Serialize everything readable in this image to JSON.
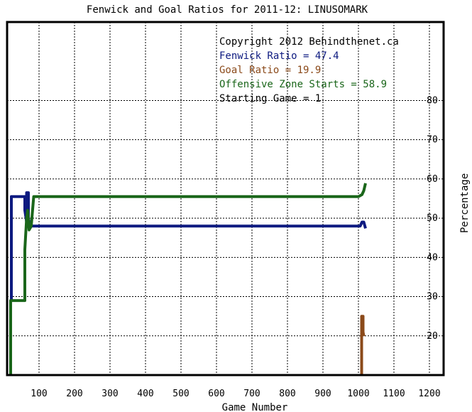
{
  "chart_data": {
    "type": "line",
    "title": "Fenwick and Goal Ratios for 2011-12: LINUSOMARK",
    "xlabel": "Game Number",
    "ylabel": "Percentage",
    "xlim": [
      10,
      1240
    ],
    "ylim": [
      10,
      100
    ],
    "x_ticks": [
      100,
      200,
      300,
      400,
      500,
      600,
      700,
      800,
      900,
      1000,
      1100,
      1200
    ],
    "y_ticks": [
      20,
      30,
      40,
      50,
      60,
      70,
      80
    ],
    "grid": true,
    "legend_position": "top-right",
    "legend": [
      {
        "text": "Copyright 2012 Behindthenet.ca",
        "color": "#000000"
      },
      {
        "text": "Fenwick Ratio = 47.4",
        "color": "#0d1a80"
      },
      {
        "text": "Goal Ratio = 19.9",
        "color": "#8b4a1a"
      },
      {
        "text": "Offensive Zone Starts = 58.9",
        "color": "#1a661a"
      },
      {
        "text": "Starting Game = 1",
        "color": "#000000"
      }
    ],
    "series": [
      {
        "name": "Fenwick Ratio",
        "color": "#0d1a80",
        "points": [
          [
            22,
            29
          ],
          [
            22,
            55.5
          ],
          [
            60,
            55.5
          ],
          [
            60,
            52
          ],
          [
            65,
            49
          ],
          [
            65,
            56.5
          ],
          [
            70,
            56.5
          ],
          [
            70,
            50
          ],
          [
            75,
            47.5
          ],
          [
            78,
            48
          ],
          [
            1005,
            48
          ],
          [
            1010,
            49
          ],
          [
            1015,
            49
          ],
          [
            1020,
            47.4
          ]
        ]
      },
      {
        "name": "Goal Ratio",
        "color": "#8b4a1a",
        "points": [
          [
            1009,
            10
          ],
          [
            1009,
            25
          ],
          [
            1013,
            25
          ],
          [
            1013,
            21
          ],
          [
            1015,
            20
          ],
          [
            1015,
            19.9
          ]
        ]
      },
      {
        "name": "Offensive Zone Starts",
        "color": "#1a661a",
        "points": [
          [
            20,
            10
          ],
          [
            20,
            29
          ],
          [
            60,
            29
          ],
          [
            60,
            42
          ],
          [
            65,
            50
          ],
          [
            68,
            52
          ],
          [
            72,
            47
          ],
          [
            78,
            48
          ],
          [
            85,
            55.5
          ],
          [
            1000,
            55.5
          ],
          [
            1010,
            56
          ],
          [
            1015,
            57
          ],
          [
            1020,
            58.9
          ]
        ]
      }
    ]
  }
}
